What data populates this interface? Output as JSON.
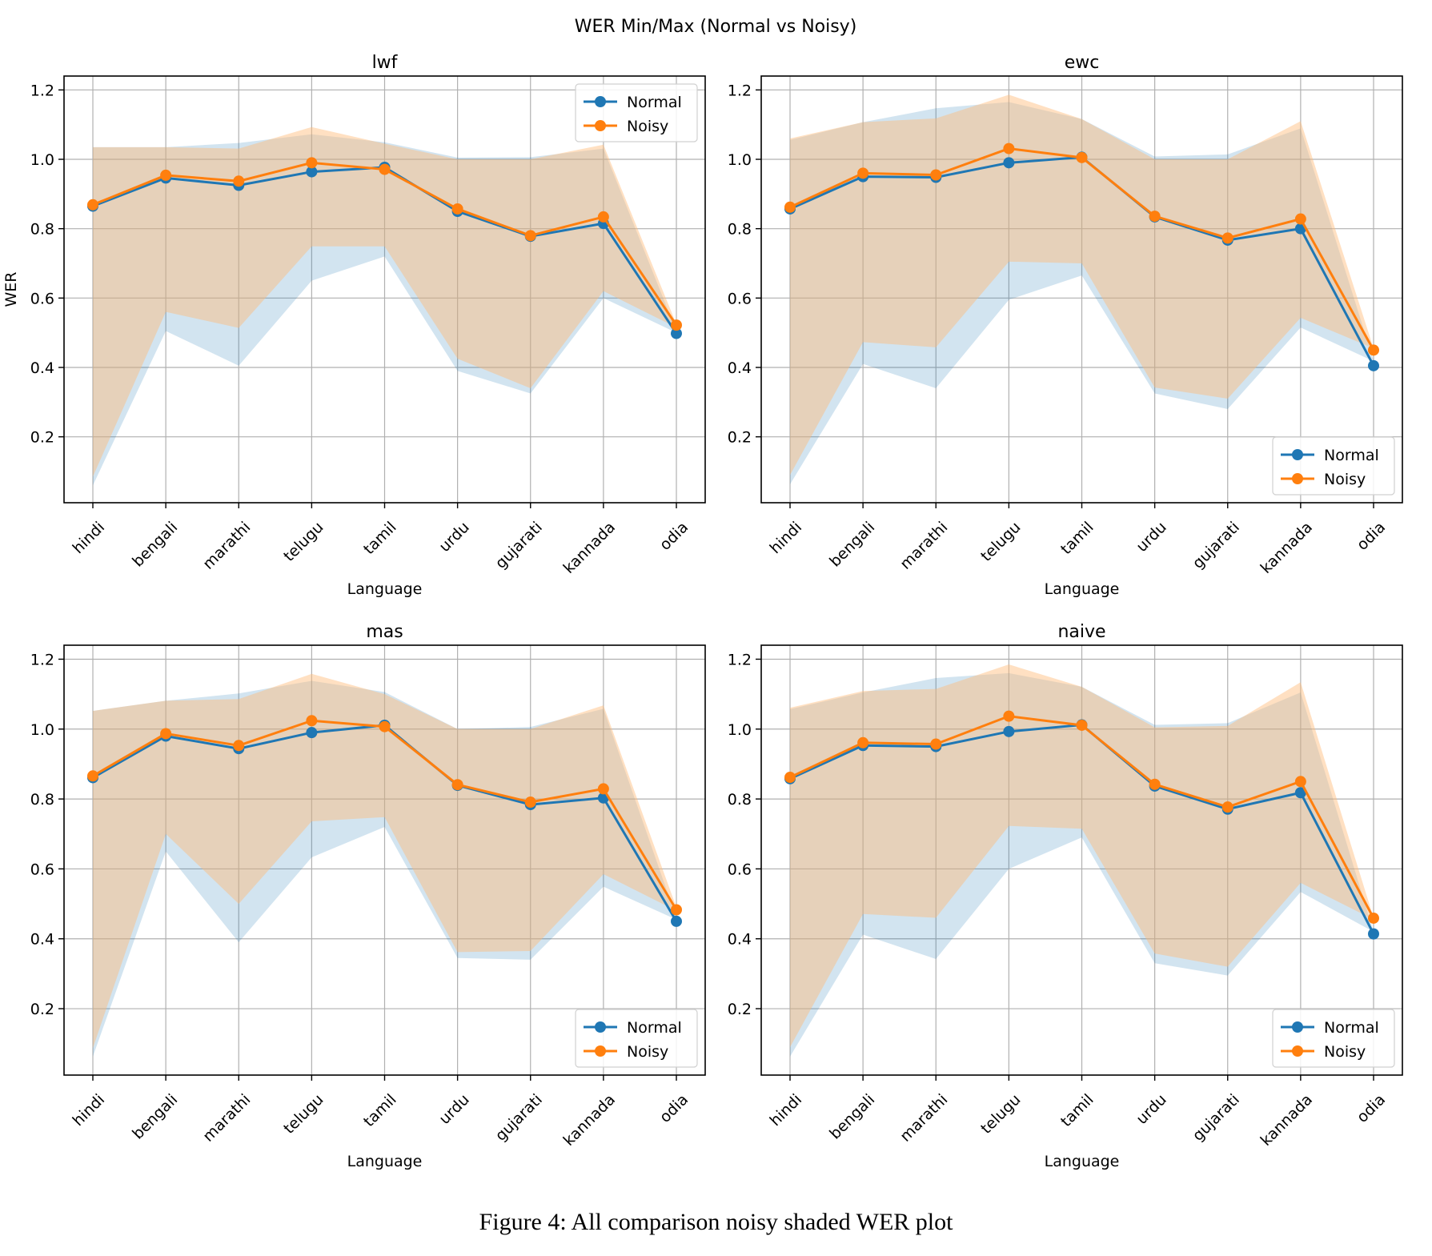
{
  "figure": {
    "suptitle": "WER Min/Max (Normal vs Noisy)",
    "caption": "Figure 4: All comparison noisy shaded WER plot"
  },
  "colors": {
    "normal": "#1f77b4",
    "noisy": "#ff7f0e",
    "normal_fill": "#1f77b4",
    "noisy_fill": "#ffbb78",
    "grid": "#b0b0b0"
  },
  "chart_data": [
    {
      "type": "line",
      "title": "lwf",
      "xlabel": "Language",
      "ylabel": "WER",
      "categories": [
        "hindi",
        "bengali",
        "marathi",
        "telugu",
        "tamil",
        "urdu",
        "gujarati",
        "kannada",
        "odia"
      ],
      "ylim": [
        0.01,
        1.24
      ],
      "yticks": [
        0.2,
        0.4,
        0.6,
        0.8,
        1.0,
        1.2
      ],
      "ytick_labels": [
        "0.2",
        "0.4",
        "0.6",
        "0.8",
        "1.0",
        "1.2"
      ],
      "grid": true,
      "legend": {
        "position": "top-right",
        "entries": [
          "Normal",
          "Noisy"
        ]
      },
      "series": [
        {
          "name": "Normal",
          "values": [
            0.865,
            0.946,
            0.925,
            0.964,
            0.977,
            0.85,
            0.778,
            0.815,
            0.498
          ],
          "min": [
            0.06,
            0.505,
            0.405,
            0.65,
            0.72,
            0.39,
            0.325,
            0.6,
            0.5
          ],
          "max": [
            1.035,
            1.035,
            1.047,
            1.072,
            1.049,
            1.005,
            1.006,
            1.031,
            0.505
          ]
        },
        {
          "name": "Noisy",
          "values": [
            0.869,
            0.954,
            0.937,
            0.99,
            0.971,
            0.857,
            0.78,
            0.834,
            0.522
          ],
          "min": [
            0.085,
            0.56,
            0.514,
            0.749,
            0.749,
            0.425,
            0.34,
            0.62,
            0.515
          ],
          "max": [
            1.035,
            1.035,
            1.031,
            1.093,
            1.045,
            1.0,
            1.0,
            1.042,
            0.525
          ]
        }
      ]
    },
    {
      "type": "line",
      "title": "ewc",
      "xlabel": "Language",
      "ylabel": "",
      "categories": [
        "hindi",
        "bengali",
        "marathi",
        "telugu",
        "tamil",
        "urdu",
        "gujarati",
        "kannada",
        "odia"
      ],
      "ylim": [
        0.01,
        1.24
      ],
      "yticks": [
        0.2,
        0.4,
        0.6,
        0.8,
        1.0,
        1.2
      ],
      "ytick_labels": [
        "0.2",
        "0.4",
        "0.6",
        "0.8",
        "1.0",
        "1.2"
      ],
      "grid": true,
      "legend": {
        "position": "bottom-right",
        "entries": [
          "Normal",
          "Noisy"
        ]
      },
      "series": [
        {
          "name": "Normal",
          "values": [
            0.857,
            0.95,
            0.948,
            0.99,
            1.006,
            0.834,
            0.767,
            0.8,
            0.405
          ],
          "min": [
            0.063,
            0.41,
            0.34,
            0.595,
            0.665,
            0.325,
            0.28,
            0.515,
            0.418
          ],
          "max": [
            1.056,
            1.107,
            1.147,
            1.165,
            1.116,
            1.008,
            1.014,
            1.089,
            0.42
          ]
        },
        {
          "name": "Noisy",
          "values": [
            0.862,
            0.96,
            0.955,
            1.031,
            1.005,
            0.836,
            0.773,
            0.828,
            0.45
          ],
          "min": [
            0.09,
            0.473,
            0.458,
            0.705,
            0.7,
            0.342,
            0.31,
            0.543,
            0.455
          ],
          "max": [
            1.06,
            1.107,
            1.118,
            1.186,
            1.116,
            1.0,
            1.0,
            1.11,
            0.455
          ]
        }
      ]
    },
    {
      "type": "line",
      "title": "mas",
      "xlabel": "Language",
      "ylabel": "",
      "categories": [
        "hindi",
        "bengali",
        "marathi",
        "telugu",
        "tamil",
        "urdu",
        "gujarati",
        "kannada",
        "odia"
      ],
      "ylim": [
        0.01,
        1.24
      ],
      "yticks": [
        0.2,
        0.4,
        0.6,
        0.8,
        1.0,
        1.2
      ],
      "ytick_labels": [
        "0.2",
        "0.4",
        "0.6",
        "0.8",
        "1.0",
        "1.2"
      ],
      "grid": true,
      "legend": {
        "position": "bottom-right",
        "entries": [
          "Normal",
          "Noisy"
        ]
      },
      "series": [
        {
          "name": "Normal",
          "values": [
            0.861,
            0.98,
            0.944,
            0.99,
            1.011,
            0.839,
            0.784,
            0.803,
            0.45
          ],
          "min": [
            0.063,
            0.65,
            0.39,
            0.633,
            0.72,
            0.345,
            0.34,
            0.549,
            0.455
          ],
          "max": [
            1.052,
            1.081,
            1.102,
            1.138,
            1.106,
            1.0,
            1.006,
            1.058,
            0.46
          ]
        },
        {
          "name": "Noisy",
          "values": [
            0.866,
            0.987,
            0.953,
            1.024,
            1.007,
            0.841,
            0.791,
            0.829,
            0.483
          ],
          "min": [
            0.087,
            0.7,
            0.5,
            0.736,
            0.748,
            0.362,
            0.365,
            0.585,
            0.48
          ],
          "max": [
            1.052,
            1.081,
            1.086,
            1.158,
            1.1,
            1.0,
            1.0,
            1.068,
            0.49
          ]
        }
      ]
    },
    {
      "type": "line",
      "title": "naive",
      "xlabel": "Language",
      "ylabel": "",
      "categories": [
        "hindi",
        "bengali",
        "marathi",
        "telugu",
        "tamil",
        "urdu",
        "gujarati",
        "kannada",
        "odia"
      ],
      "ylim": [
        0.01,
        1.24
      ],
      "yticks": [
        0.2,
        0.4,
        0.6,
        0.8,
        1.0,
        1.2
      ],
      "ytick_labels": [
        "0.2",
        "0.4",
        "0.6",
        "0.8",
        "1.0",
        "1.2"
      ],
      "grid": true,
      "legend": {
        "position": "bottom-right",
        "entries": [
          "Normal",
          "Noisy"
        ]
      },
      "series": [
        {
          "name": "Normal",
          "values": [
            0.858,
            0.953,
            0.95,
            0.993,
            1.012,
            0.837,
            0.771,
            0.818,
            0.414
          ],
          "min": [
            0.063,
            0.412,
            0.342,
            0.6,
            0.69,
            0.33,
            0.295,
            0.534,
            0.42
          ],
          "max": [
            1.057,
            1.105,
            1.146,
            1.16,
            1.121,
            1.012,
            1.017,
            1.105,
            0.42
          ]
        },
        {
          "name": "Noisy",
          "values": [
            0.862,
            0.961,
            0.957,
            1.037,
            1.011,
            0.842,
            0.777,
            0.85,
            0.459
          ],
          "min": [
            0.09,
            0.471,
            0.46,
            0.723,
            0.715,
            0.358,
            0.32,
            0.56,
            0.455
          ],
          "max": [
            1.061,
            1.109,
            1.115,
            1.185,
            1.121,
            1.005,
            1.009,
            1.134,
            0.46
          ]
        }
      ]
    }
  ]
}
